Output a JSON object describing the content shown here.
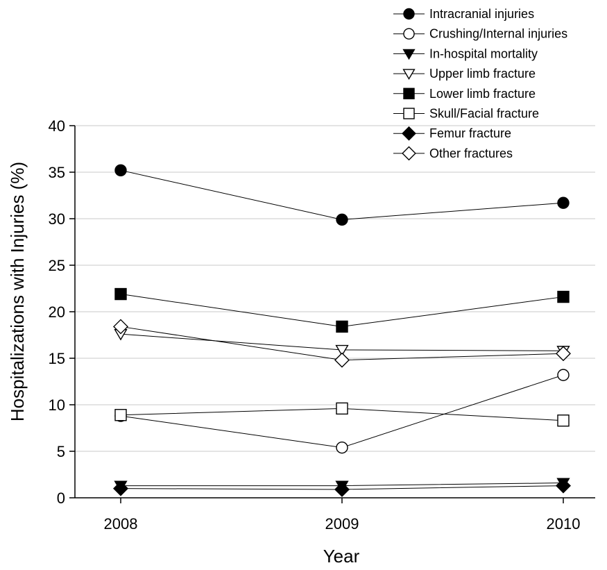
{
  "chart_data": {
    "type": "line",
    "title": "",
    "xlabel": "Year",
    "ylabel": "Hospitalizations with Injuries (%)",
    "x": [
      "2008",
      "2009",
      "2010"
    ],
    "ylim": [
      0,
      40
    ],
    "yticks": [
      "0",
      "5",
      "10",
      "15",
      "20",
      "25",
      "30",
      "35",
      "40"
    ],
    "grid": true,
    "legend_position": "top-right",
    "series": [
      {
        "name": "Intracranial injuries",
        "marker": "circle",
        "fill": "filled",
        "values": [
          35.2,
          29.9,
          31.7
        ]
      },
      {
        "name": "Crushing/Internal injuries",
        "marker": "circle",
        "fill": "open",
        "values": [
          8.8,
          5.4,
          13.2
        ]
      },
      {
        "name": "In-hospital mortality",
        "marker": "triangle-down",
        "fill": "filled",
        "values": [
          1.3,
          1.3,
          1.6
        ]
      },
      {
        "name": "Upper limb fracture",
        "marker": "triangle-down",
        "fill": "open",
        "values": [
          17.6,
          15.9,
          15.8
        ]
      },
      {
        "name": "Lower limb fracture",
        "marker": "square",
        "fill": "filled",
        "values": [
          21.9,
          18.4,
          21.6
        ]
      },
      {
        "name": "Skull/Facial fracture",
        "marker": "square",
        "fill": "open",
        "values": [
          8.9,
          9.6,
          8.3
        ]
      },
      {
        "name": "Femur fracture",
        "marker": "diamond",
        "fill": "filled",
        "values": [
          1.0,
          0.9,
          1.3
        ]
      },
      {
        "name": "Other fractures",
        "marker": "diamond",
        "fill": "open",
        "values": [
          18.4,
          14.8,
          15.5
        ]
      }
    ]
  },
  "colors": {
    "line": "#000000",
    "grid": "#c8c8c8",
    "marker_fill": "#000000",
    "marker_open": "#ffffff"
  }
}
